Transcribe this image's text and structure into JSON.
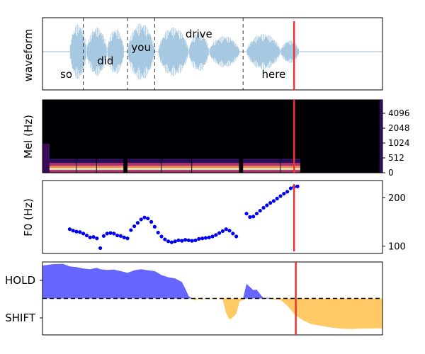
{
  "chart_data": [
    {
      "type": "line",
      "panel": "waveform",
      "ylabel": "waveform",
      "words": [
        {
          "label": "so",
          "start": 0.02,
          "end": 0.12
        },
        {
          "label": "did",
          "start": 0.12,
          "end": 0.25
        },
        {
          "label": "you",
          "start": 0.25,
          "end": 0.33
        },
        {
          "label": "drive",
          "start": 0.33,
          "end": 0.59
        },
        {
          "label": "here",
          "start": 0.59,
          "end": 0.77
        }
      ],
      "word_boundaries": [
        0.12,
        0.25,
        0.33,
        0.59
      ],
      "marker_x": 0.74,
      "colors": {
        "waveform": "#a6c8e0",
        "boundary": "#333333",
        "marker": "#ee3333"
      }
    },
    {
      "type": "heatmap",
      "panel": "mel",
      "ylabel": "Mel (Hz)",
      "yticks": [
        "0",
        "512",
        "1024",
        "2048",
        "4096"
      ],
      "marker_x": 0.74,
      "colormap": "magma"
    },
    {
      "type": "scatter",
      "panel": "f0",
      "ylabel": "F0 (Hz)",
      "yticks": [
        100,
        200
      ],
      "ylim": [
        85,
        235
      ],
      "marker_x": 0.74,
      "point_color": "#0000ee",
      "points": [
        [
          0.08,
          135
        ],
        [
          0.09,
          132
        ],
        [
          0.1,
          130
        ],
        [
          0.11,
          129
        ],
        [
          0.12,
          126
        ],
        [
          0.13,
          122
        ],
        [
          0.14,
          118
        ],
        [
          0.15,
          119
        ],
        [
          0.16,
          116
        ],
        [
          0.17,
          96
        ],
        [
          0.18,
          121
        ],
        [
          0.19,
          126
        ],
        [
          0.2,
          127
        ],
        [
          0.21,
          126
        ],
        [
          0.22,
          122
        ],
        [
          0.23,
          121
        ],
        [
          0.24,
          118
        ],
        [
          0.25,
          116
        ],
        [
          0.26,
          133
        ],
        [
          0.27,
          141
        ],
        [
          0.28,
          148
        ],
        [
          0.29,
          155
        ],
        [
          0.3,
          159
        ],
        [
          0.31,
          157
        ],
        [
          0.32,
          150
        ],
        [
          0.33,
          140
        ],
        [
          0.34,
          128
        ],
        [
          0.35,
          120
        ],
        [
          0.36,
          114
        ],
        [
          0.37,
          110
        ],
        [
          0.38,
          108
        ],
        [
          0.39,
          110
        ],
        [
          0.4,
          112
        ],
        [
          0.41,
          111
        ],
        [
          0.42,
          113
        ],
        [
          0.43,
          112
        ],
        [
          0.44,
          111
        ],
        [
          0.45,
          112
        ],
        [
          0.46,
          115
        ],
        [
          0.47,
          116
        ],
        [
          0.48,
          117
        ],
        [
          0.49,
          118
        ],
        [
          0.5,
          120
        ],
        [
          0.51,
          123
        ],
        [
          0.52,
          127
        ],
        [
          0.53,
          131
        ],
        [
          0.54,
          135
        ],
        [
          0.55,
          132
        ],
        [
          0.56,
          126
        ],
        [
          0.57,
          120
        ],
        [
          0.6,
          167
        ],
        [
          0.61,
          160
        ],
        [
          0.62,
          161
        ],
        [
          0.63,
          167
        ],
        [
          0.64,
          173
        ],
        [
          0.65,
          179
        ],
        [
          0.66,
          184
        ],
        [
          0.67,
          189
        ],
        [
          0.68,
          193
        ],
        [
          0.69,
          198
        ],
        [
          0.7,
          203
        ],
        [
          0.71,
          208
        ],
        [
          0.72,
          212
        ],
        [
          0.73,
          219
        ],
        [
          0.74,
          222
        ],
        [
          0.75,
          223
        ]
      ]
    },
    {
      "type": "area",
      "panel": "turn-taking",
      "yticks": [
        "HOLD",
        "SHIFT"
      ],
      "ylim": [
        -1,
        1
      ],
      "marker_x": 0.745,
      "hold_color": "#6666ff",
      "shift_color": "#ffc966",
      "series": [
        [
          0.0,
          0.9
        ],
        [
          0.03,
          0.94
        ],
        [
          0.06,
          0.95
        ],
        [
          0.08,
          0.88
        ],
        [
          0.1,
          0.86
        ],
        [
          0.12,
          0.82
        ],
        [
          0.14,
          0.8
        ],
        [
          0.16,
          0.84
        ],
        [
          0.17,
          0.8
        ],
        [
          0.19,
          0.78
        ],
        [
          0.21,
          0.79
        ],
        [
          0.23,
          0.75
        ],
        [
          0.25,
          0.7
        ],
        [
          0.27,
          0.77
        ],
        [
          0.29,
          0.8
        ],
        [
          0.31,
          0.77
        ],
        [
          0.33,
          0.75
        ],
        [
          0.35,
          0.64
        ],
        [
          0.37,
          0.58
        ],
        [
          0.39,
          0.55
        ],
        [
          0.41,
          0.45
        ],
        [
          0.42,
          0.27
        ],
        [
          0.43,
          0.06
        ],
        [
          0.44,
          -0.02
        ],
        [
          0.45,
          -0.06
        ],
        [
          0.46,
          0.0
        ],
        [
          0.47,
          -0.03
        ],
        [
          0.48,
          0.0
        ],
        [
          0.49,
          -0.03
        ],
        [
          0.5,
          0.0
        ],
        [
          0.51,
          -0.02
        ],
        [
          0.52,
          0.0
        ],
        [
          0.53,
          -0.03
        ],
        [
          0.54,
          -0.4
        ],
        [
          0.55,
          -0.58
        ],
        [
          0.56,
          -0.52
        ],
        [
          0.57,
          -0.42
        ],
        [
          0.58,
          -0.07
        ],
        [
          0.59,
          -0.05
        ],
        [
          0.6,
          0.4
        ],
        [
          0.62,
          0.23
        ],
        [
          0.63,
          0.24
        ],
        [
          0.64,
          0.12
        ],
        [
          0.65,
          -0.02
        ],
        [
          0.66,
          0.02
        ],
        [
          0.68,
          -0.03
        ],
        [
          0.7,
          -0.04
        ],
        [
          0.72,
          -0.2
        ],
        [
          0.74,
          -0.42
        ],
        [
          0.75,
          -0.5
        ],
        [
          0.77,
          -0.62
        ],
        [
          0.79,
          -0.7
        ],
        [
          0.82,
          -0.75
        ],
        [
          0.85,
          -0.8
        ],
        [
          0.88,
          -0.83
        ],
        [
          0.91,
          -0.84
        ],
        [
          0.93,
          -0.83
        ],
        [
          1.0,
          -0.82
        ]
      ]
    }
  ]
}
